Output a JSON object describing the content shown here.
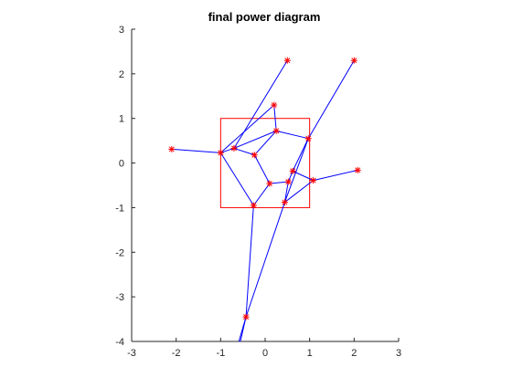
{
  "chart_data": {
    "type": "line",
    "title": "final power diagram",
    "xlabel": "",
    "ylabel": "",
    "xlim": [
      -3,
      3
    ],
    "ylim": [
      -4,
      3
    ],
    "xticks": [
      -3,
      -2,
      -1,
      0,
      1,
      2,
      3
    ],
    "yticks": [
      -4,
      -3,
      -2,
      -1,
      0,
      1,
      2,
      3
    ],
    "grid": false,
    "colors": {
      "edges": "#0000ff",
      "sites": "#ff0000",
      "box": "#ff0000",
      "axes": "#262626"
    },
    "box": {
      "x": [
        -1,
        1
      ],
      "y": [
        -1,
        1
      ]
    },
    "sites": [
      {
        "x": 0.5,
        "y": 2.3
      },
      {
        "x": 2.0,
        "y": 2.3
      },
      {
        "x": 0.2,
        "y": 1.3
      },
      {
        "x": 0.25,
        "y": 0.72
      },
      {
        "x": 0.97,
        "y": 0.55
      },
      {
        "x": -0.7,
        "y": 0.33
      },
      {
        "x": -2.1,
        "y": 0.31
      },
      {
        "x": -1.0,
        "y": 0.23
      },
      {
        "x": -0.24,
        "y": 0.18
      },
      {
        "x": 0.62,
        "y": -0.18
      },
      {
        "x": 2.08,
        "y": -0.16
      },
      {
        "x": 1.08,
        "y": -0.39
      },
      {
        "x": 0.52,
        "y": -0.42
      },
      {
        "x": 0.1,
        "y": -0.46
      },
      {
        "x": 0.44,
        "y": -0.88
      },
      {
        "x": -0.26,
        "y": -0.95
      },
      {
        "x": -0.43,
        "y": -3.45
      }
    ],
    "edges": [
      [
        0,
        5
      ],
      [
        2,
        7
      ],
      [
        2,
        3
      ],
      [
        3,
        5
      ],
      [
        3,
        4
      ],
      [
        1,
        4
      ],
      [
        4,
        9
      ],
      [
        4,
        14
      ],
      [
        5,
        7
      ],
      [
        6,
        7
      ],
      [
        5,
        8
      ],
      [
        7,
        15
      ],
      [
        8,
        3
      ],
      [
        8,
        13
      ],
      [
        13,
        12
      ],
      [
        13,
        15
      ],
      [
        12,
        9
      ],
      [
        12,
        14
      ],
      [
        9,
        11
      ],
      [
        11,
        10
      ],
      [
        11,
        14
      ],
      [
        14,
        16
      ],
      [
        15,
        16
      ],
      [
        16,
        17
      ],
      [
        18,
        16
      ]
    ],
    "extra_points": [
      {
        "x": -0.58,
        "y": -4.1
      },
      {
        "x": -0.62,
        "y": -4.1
      }
    ]
  }
}
